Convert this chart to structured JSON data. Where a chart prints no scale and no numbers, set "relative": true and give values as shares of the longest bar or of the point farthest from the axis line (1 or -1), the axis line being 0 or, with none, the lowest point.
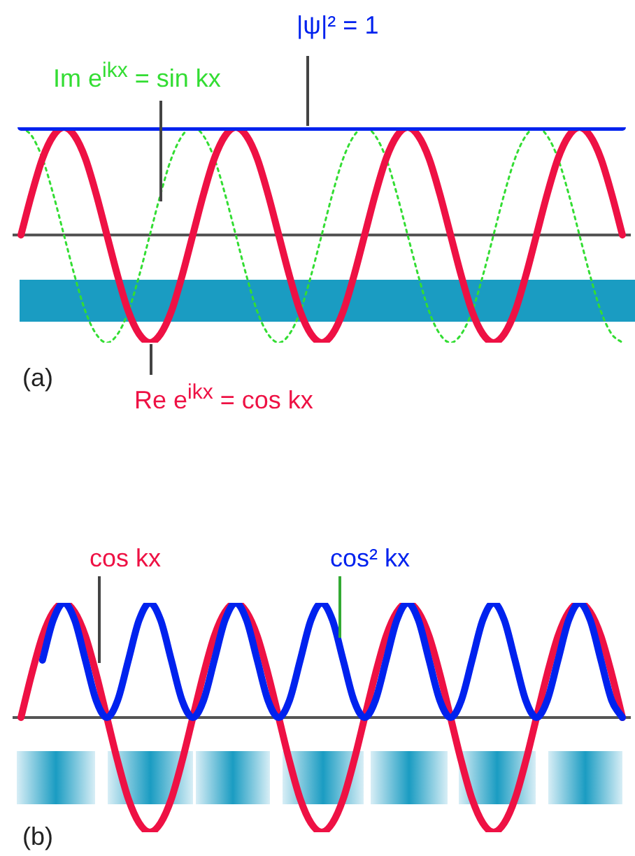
{
  "chart_data": [
    {
      "type": "line",
      "relative": true,
      "legend": false,
      "grid": false,
      "marker": "none",
      "line_style": "solid",
      "annotations": [
        "(a)"
      ],
      "categories": [
        null,
        null,
        null,
        null,
        null,
        null,
        null,
        null,
        null,
        null,
        null,
        null,
        null,
        null,
        null,
        null,
        null,
        null,
        null,
        null,
        null,
        null,
        null,
        null,
        null,
        null,
        null,
        null,
        null,
        null,
        null,
        null,
        null,
        null,
        null,
        null,
        null,
        null,
        null,
        null,
        null,
        null,
        null,
        null,
        null,
        null,
        null,
        null,
        null,
        null,
        null,
        null,
        null,
        null,
        null,
        null,
        null
      ],
      "series": [
        {
          "name": "|ψ|² = 1",
          "color": "#0022ee",
          "values": [
            1,
            1,
            1,
            1,
            1,
            1,
            1,
            1,
            1,
            1,
            1,
            1,
            1,
            1,
            1,
            1,
            1,
            1,
            1,
            1,
            1,
            1,
            1,
            1,
            1,
            1,
            1,
            1,
            1,
            1,
            1,
            1,
            1,
            1,
            1,
            1,
            1,
            1,
            1,
            1,
            1,
            1,
            1,
            1,
            1,
            1,
            1,
            1,
            1,
            1,
            1,
            1,
            1,
            1,
            1,
            1,
            1
          ]
        },
        {
          "name": "Re e$^{ikx}$ = cos kx",
          "color": "#ee1144",
          "values": [
            0,
            0.38,
            0.71,
            0.92,
            1,
            0.92,
            0.71,
            0.38,
            0,
            -0.38,
            -0.71,
            -0.92,
            -1,
            -0.92,
            -0.71,
            -0.38,
            0,
            0.38,
            0.71,
            0.92,
            1,
            0.92,
            0.71,
            0.38,
            0,
            -0.38,
            -0.71,
            -0.92,
            -1,
            -0.92,
            -0.71,
            -0.38,
            0,
            0.38,
            0.71,
            0.92,
            1,
            0.92,
            0.71,
            0.38,
            0,
            -0.38,
            -0.71,
            -0.92,
            -1,
            -0.92,
            -0.71,
            -0.38,
            0,
            0.38,
            0.71,
            0.92,
            1,
            0.92,
            0.71,
            0.38,
            0
          ]
        },
        {
          "name": "Im e$^{ikx}$ = sin kx",
          "color": "#33dd33",
          "line_style": "dotted",
          "values": [
            1,
            0.92,
            0.71,
            0.38,
            0,
            -0.38,
            -0.71,
            -0.92,
            -1,
            -0.92,
            -0.71,
            -0.38,
            0,
            0.38,
            0.71,
            0.92,
            1,
            0.92,
            0.71,
            0.38,
            0,
            -0.38,
            -0.71,
            -0.92,
            -1,
            -0.92,
            -0.71,
            -0.38,
            0,
            0.38,
            0.71,
            0.92,
            1,
            0.92,
            0.71,
            0.38,
            0,
            -0.38,
            -0.71,
            -0.92,
            -1,
            -0.92,
            -0.71,
            -0.38,
            0,
            0.38,
            0.71,
            0.92,
            1,
            0.92,
            0.71,
            0.38,
            0,
            -0.38,
            -0.71,
            -0.92,
            -1
          ]
        }
      ]
    },
    {
      "type": "line",
      "relative": true,
      "legend": false,
      "grid": false,
      "marker": "none",
      "line_style": "solid",
      "annotations": [
        "(b)"
      ],
      "categories": [
        null,
        null,
        null,
        null,
        null,
        null,
        null,
        null,
        null,
        null,
        null,
        null,
        null,
        null,
        null,
        null,
        null,
        null,
        null,
        null,
        null,
        null,
        null,
        null,
        null,
        null,
        null,
        null,
        null,
        null,
        null,
        null,
        null,
        null,
        null,
        null,
        null,
        null,
        null,
        null,
        null,
        null,
        null,
        null,
        null,
        null,
        null,
        null,
        null,
        null,
        null,
        null,
        null,
        null,
        null,
        null,
        null
      ],
      "series": [
        {
          "name": "cos² kx",
          "color": "#0022ee",
          "values": [
            null,
            null,
            0.5,
            0.85,
            1,
            0.85,
            0.5,
            0.15,
            0,
            0.15,
            0.5,
            0.85,
            1,
            0.85,
            0.5,
            0.15,
            0,
            0.15,
            0.5,
            0.85,
            1,
            0.85,
            0.5,
            0.15,
            0,
            0.15,
            0.5,
            0.85,
            1,
            0.85,
            0.5,
            0.15,
            0,
            0.15,
            0.5,
            0.85,
            1,
            0.85,
            0.5,
            0.15,
            0,
            0.15,
            0.5,
            0.85,
            1,
            0.85,
            0.5,
            0.15,
            0,
            0.15,
            0.5,
            0.85,
            1,
            0.85,
            0.5,
            0.15,
            0
          ]
        },
        {
          "name": "cos kx",
          "color": "#ee1144",
          "values": [
            0,
            0.38,
            0.71,
            0.92,
            1,
            0.92,
            0.71,
            0.38,
            0,
            -0.38,
            -0.71,
            -0.92,
            -1,
            -0.92,
            -0.71,
            -0.38,
            0,
            0.38,
            0.71,
            0.92,
            1,
            0.92,
            0.71,
            0.38,
            0,
            -0.38,
            -0.71,
            -0.92,
            -1,
            -0.92,
            -0.71,
            -0.38,
            0,
            0.38,
            0.71,
            0.92,
            1,
            0.92,
            0.71,
            0.38,
            0,
            -0.38,
            -0.71,
            -0.92,
            -1,
            -0.92,
            -0.71,
            -0.38,
            0,
            0.38,
            0.71,
            0.92,
            1,
            0.92,
            0.71,
            0.38,
            0
          ]
        }
      ]
    }
  ]
}
